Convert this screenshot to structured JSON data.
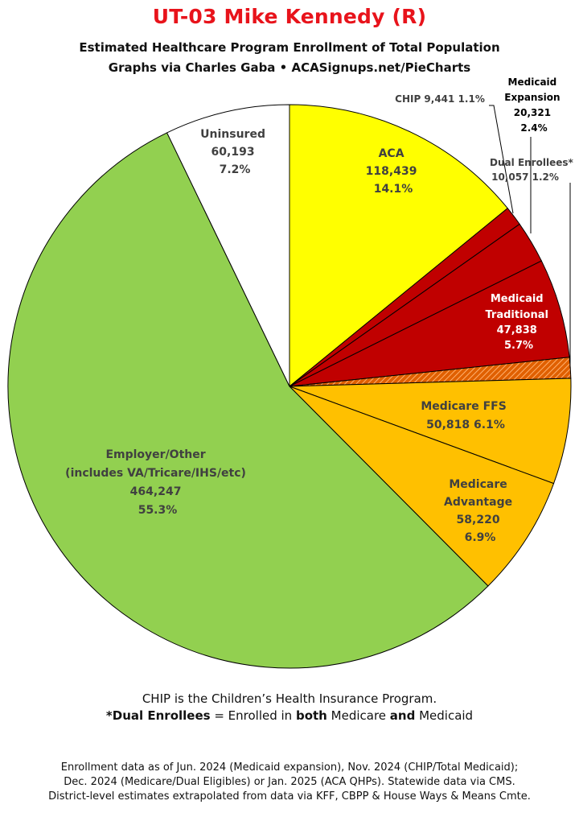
{
  "header": {
    "title": "UT-03 Mike Kennedy (R)",
    "subtitle1": "Estimated Healthcare Program Enrollment of Total Population",
    "subtitle2": "Graphs via Charles Gaba   •   ACASignups.net/PieCharts"
  },
  "chart_data": {
    "type": "pie",
    "title": "UT-03 Mike Kennedy (R)",
    "start": "12 o'clock, clockwise",
    "slices": [
      {
        "label": "ACA",
        "value": 118439,
        "percent": "14.1%",
        "color": "#ffff00"
      },
      {
        "label": "CHIP",
        "value": 9441,
        "percent": "1.1%",
        "color": "#c00000"
      },
      {
        "label": "Medicaid Expansion",
        "value": 20321,
        "percent": "2.4%",
        "color": "#c00000"
      },
      {
        "label": "Medicaid Traditional",
        "value": 47838,
        "percent": "5.7%",
        "color": "#c00000"
      },
      {
        "label": "Dual Enrollees*",
        "value": 10057,
        "percent": "1.2%",
        "color": "#e06000",
        "pattern": "hatched"
      },
      {
        "label": "Medicare FFS",
        "value": 50818,
        "percent": "6.1%",
        "color": "#ffc000"
      },
      {
        "label": "Medicare Advantage",
        "value": 58220,
        "percent": "6.9%",
        "color": "#ffc000"
      },
      {
        "label": "Employer/Other (includes VA/Tricare/IHS/etc)",
        "value": 464247,
        "percent": "55.3%",
        "color": "#92d050"
      },
      {
        "label": "Uninsured",
        "value": 60193,
        "percent": "7.2%",
        "color": "#ffffff"
      }
    ]
  },
  "labels": {
    "aca": [
      "ACA",
      "118,439",
      "14.1%"
    ],
    "chip": "CHIP 9,441 1.1%",
    "expansion": [
      "Medicaid",
      "Expansion",
      "20,321",
      "2.4%"
    ],
    "dual": [
      "Dual Enrollees*",
      "10,057 1.2%"
    ],
    "traditional": [
      "Medicaid",
      "Traditional",
      "47,838",
      "5.7%"
    ],
    "ffs": [
      "Medicare FFS",
      "50,818 6.1%"
    ],
    "advantage": [
      "Medicare",
      "Advantage",
      "58,220",
      "6.9%"
    ],
    "employer": [
      "Employer/Other",
      "(includes VA/Tricare/IHS/etc)",
      "464,247",
      "55.3%"
    ],
    "uninsured": [
      "Uninsured",
      "60,193",
      "7.2%"
    ]
  },
  "notes": {
    "chip_note": "CHIP is the Children’s Health Insurance Program.",
    "dual_term": "*Dual Enrollees",
    "dual_mid1": " = Enrolled in ",
    "dual_both": "both",
    "dual_mid2": " Medicare ",
    "dual_and": "and",
    "dual_end": " Medicaid"
  },
  "footer": {
    "line1": "Enrollment data as of Jun. 2024 (Medicaid expansion), Nov. 2024 (CHIP/Total Medicaid);",
    "line2": "Dec. 2024 (Medicare/Dual Eligibles) or Jan. 2025 (ACA QHPs). Statewide data via CMS.",
    "line3": "District-level estimates extrapolated from data via KFF, CBPP & House Ways & Means Cmte."
  }
}
